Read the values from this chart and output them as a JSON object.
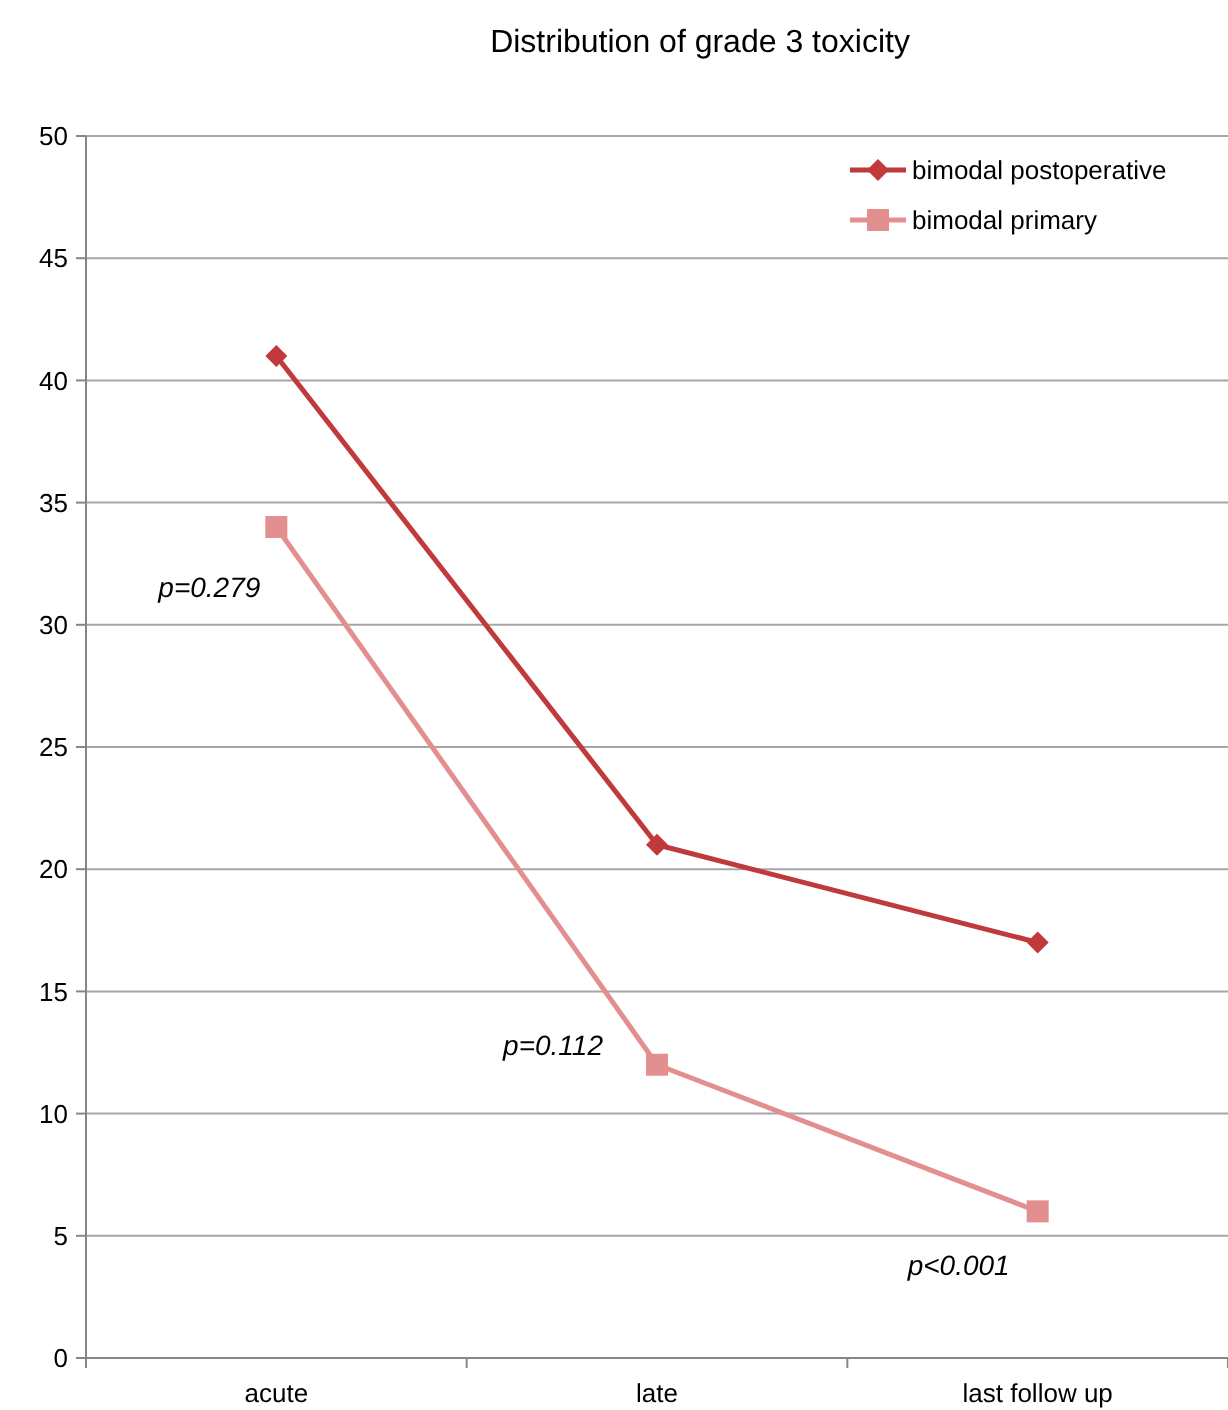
{
  "chart_data": {
    "type": "line",
    "title": "Distribution  of grade 3 toxicity",
    "categories": [
      "acute",
      "late",
      "last follow up"
    ],
    "series": [
      {
        "name": "bimodal postoperative",
        "color": "#c0393b",
        "values": [
          41,
          21,
          17
        ],
        "marker": "diamond"
      },
      {
        "name": "bimodal primary",
        "color": "#e38f8f",
        "values": [
          34,
          12,
          6
        ],
        "marker": "square"
      }
    ],
    "ylim": [
      0,
      50
    ],
    "yticks": [
      0,
      5,
      10,
      15,
      20,
      25,
      30,
      35,
      40,
      45,
      50
    ],
    "grid": "y",
    "legend": "top right",
    "annotations": [
      "p=0.279",
      "p=0.112",
      "p<0.001"
    ]
  }
}
